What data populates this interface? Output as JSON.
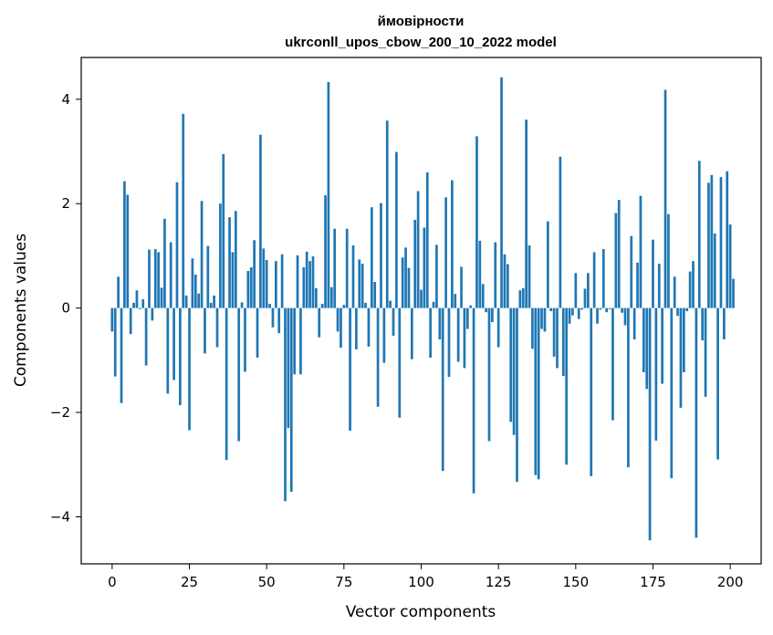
{
  "chart_data": {
    "type": "bar",
    "title_line1": "ймовірности",
    "title_line2": "ukrconll_upos_cbow_200_10_2022 model",
    "xlabel": "Vector components",
    "ylabel": "Components values",
    "xlim": [
      -10,
      210
    ],
    "ylim": [
      -4.9,
      4.8
    ],
    "xticks": [
      0,
      25,
      50,
      75,
      100,
      125,
      150,
      175,
      200
    ],
    "yticks": [
      -4,
      -2,
      0,
      2,
      4
    ],
    "bar_color": "#1f77b4",
    "grid": false,
    "values": [
      -0.45,
      -1.31,
      0.6,
      -1.82,
      2.43,
      2.17,
      -0.5,
      0.1,
      0.34,
      -0.02,
      0.17,
      -1.1,
      1.12,
      -0.24,
      1.13,
      1.07,
      0.39,
      1.71,
      -1.64,
      1.26,
      -1.38,
      2.41,
      -1.86,
      3.72,
      0.24,
      -2.34,
      0.95,
      0.64,
      0.28,
      2.05,
      -0.87,
      1.19,
      0.1,
      0.24,
      -0.75,
      2.0,
      2.95,
      -2.91,
      1.74,
      1.07,
      1.86,
      -2.55,
      0.11,
      -1.22,
      0.71,
      0.78,
      1.3,
      -0.95,
      3.32,
      1.14,
      0.92,
      0.08,
      -0.37,
      0.9,
      -0.48,
      1.03,
      -3.7,
      -2.3,
      -3.52,
      -1.27,
      1.01,
      -1.27,
      0.78,
      1.08,
      0.9,
      0.99,
      0.38,
      -0.56,
      0.08,
      2.16,
      4.33,
      0.4,
      1.52,
      -0.45,
      -0.76,
      0.06,
      1.52,
      -2.35,
      1.2,
      -0.79,
      0.93,
      0.85,
      0.1,
      -0.74,
      1.93,
      0.5,
      -1.89,
      2.01,
      -1.05,
      3.59,
      0.14,
      -0.53,
      2.99,
      -2.1,
      0.97,
      1.16,
      0.77,
      -0.98,
      1.69,
      2.24,
      0.35,
      1.54,
      2.6,
      -0.95,
      0.12,
      1.21,
      -0.6,
      -3.12,
      2.12,
      -1.32,
      2.45,
      0.27,
      -1.03,
      0.79,
      -1.15,
      -0.4,
      0.05,
      -3.55,
      3.29,
      1.29,
      0.46,
      -0.08,
      -2.55,
      -0.27,
      1.26,
      -0.75,
      4.42,
      1.03,
      0.84,
      -2.18,
      -2.43,
      -3.33,
      0.34,
      0.38,
      3.61,
      1.2,
      -0.78,
      -3.2,
      -3.28,
      -0.4,
      -0.45,
      1.66,
      -0.06,
      -0.93,
      -1.15,
      2.9,
      -1.3,
      -3.0,
      -0.3,
      -0.14,
      0.67,
      -0.21,
      -0.03,
      0.37,
      0.67,
      -3.22,
      1.07,
      -0.3,
      -0.03,
      1.13,
      -0.08,
      -0.02,
      -2.15,
      1.82,
      2.07,
      -0.09,
      -0.33,
      -3.05,
      1.38,
      -0.6,
      0.87,
      2.15,
      -1.23,
      -1.55,
      -4.45,
      1.31,
      -2.54,
      0.85,
      -1.45,
      4.18,
      1.8,
      -3.26,
      0.6,
      -0.15,
      -1.91,
      -1.23,
      -0.06,
      0.7,
      0.9,
      -4.4,
      2.82,
      -0.62,
      -1.7,
      2.4,
      2.55,
      1.43,
      -2.9,
      2.51,
      -0.6,
      2.62,
      1.6,
      0.56
    ]
  }
}
